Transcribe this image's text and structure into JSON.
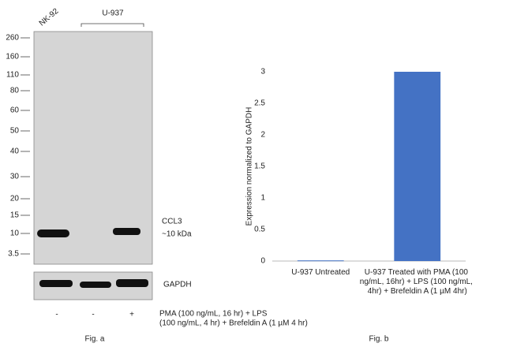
{
  "blot": {
    "lanes": [
      "NK-92",
      "U-937"
    ],
    "markers": [
      "260",
      "160",
      "110",
      "80",
      "60",
      "50",
      "40",
      "30",
      "20",
      "15",
      "10",
      "3.5"
    ],
    "band_label": "CCL3",
    "band_size": "~10 kDa",
    "control_label": "GAPDH",
    "treatment_signs": [
      "-",
      "-",
      "+"
    ],
    "treatment": [
      "PMA (100 ng/mL, 16 hr) + LPS",
      "(100 ng/mL, 4 hr) + Brefeldin A (1 µM 4 hr)"
    ],
    "caption": "Fig. a"
  },
  "chart_data": {
    "type": "bar",
    "caption": "Fig. b",
    "y_label": "Expression  normalized to GAPDH",
    "categories": [
      "U-937 Untreated",
      "U-937 Treated with PMA (100 ng/mL, 16hr) + LPS (100 ng/mL, 4hr) + Brefeldin A (1 µM 4hr)"
    ],
    "values": [
      0.01,
      3
    ],
    "color": "#4472c4",
    "ylim": [
      0,
      3
    ],
    "yticks": [
      0,
      0.5,
      1,
      1.5,
      2,
      2.5,
      3
    ],
    "grid": false
  }
}
